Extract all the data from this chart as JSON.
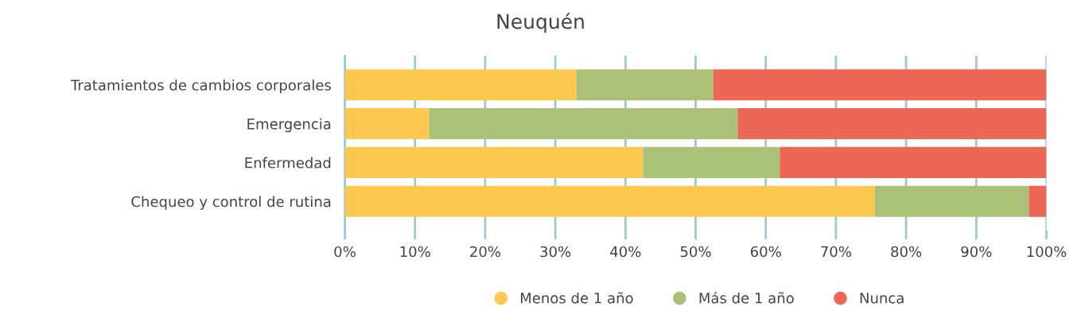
{
  "chart_data": {
    "type": "bar",
    "orientation": "horizontal",
    "stacked": true,
    "title": "Neuquén",
    "categories": [
      "Tratamientos de cambios corporales",
      "Emergencia",
      "Enfermedad",
      "Chequeo y control de rutina"
    ],
    "series": [
      {
        "name": "Menos de 1 año",
        "color": "#fdc84f",
        "values": [
          33,
          12,
          42.5,
          75.5
        ]
      },
      {
        "name": "Más de 1 año",
        "color": "#abc178",
        "values": [
          19.5,
          44,
          19.5,
          22
        ]
      },
      {
        "name": "Nunca",
        "color": "#ec6755",
        "values": [
          47.5,
          44,
          38,
          2.5
        ]
      }
    ],
    "xlim": [
      0,
      100
    ],
    "xticks": [
      {
        "value": 0,
        "label": "0%"
      },
      {
        "value": 10,
        "label": "10%"
      },
      {
        "value": 20,
        "label": "20%"
      },
      {
        "value": 30,
        "label": "30%"
      },
      {
        "value": 40,
        "label": "40%"
      },
      {
        "value": 50,
        "label": "50%"
      },
      {
        "value": 60,
        "label": "60%"
      },
      {
        "value": 70,
        "label": "70%"
      },
      {
        "value": 80,
        "label": "80%"
      },
      {
        "value": 90,
        "label": "90%"
      },
      {
        "value": 100,
        "label": "100%"
      }
    ],
    "grid": "x",
    "legend": "bottom"
  }
}
